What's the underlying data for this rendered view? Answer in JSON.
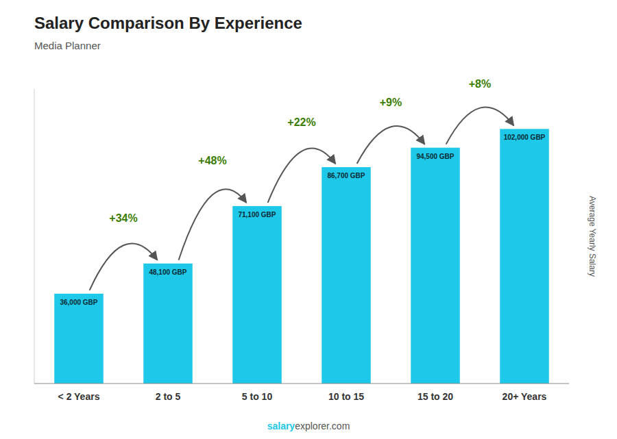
{
  "chart_data": {
    "type": "bar",
    "title": "Salary Comparison By Experience",
    "subtitle": "Media Planner",
    "categories": [
      "< 2 Years",
      "2 to 5",
      "5 to 10",
      "10 to 15",
      "15 to 20",
      "20+ Years"
    ],
    "values": [
      36000,
      48100,
      71100,
      86700,
      94500,
      102000
    ],
    "value_labels": [
      "36,000 GBP",
      "48,100 GBP",
      "71,100 GBP",
      "86,700 GBP",
      "94,500 GBP",
      "102,000 GBP"
    ],
    "data_labels": true,
    "color": "#1EC8E8",
    "ylabel": "Average Yearly Salary",
    "ylim": [
      0,
      118000
    ],
    "tick_labels": "x",
    "annotations": [
      "+34%",
      "+48%",
      "+22%",
      "+9%",
      "+8%"
    ],
    "footer": [
      "salary",
      "explorer.com"
    ]
  }
}
